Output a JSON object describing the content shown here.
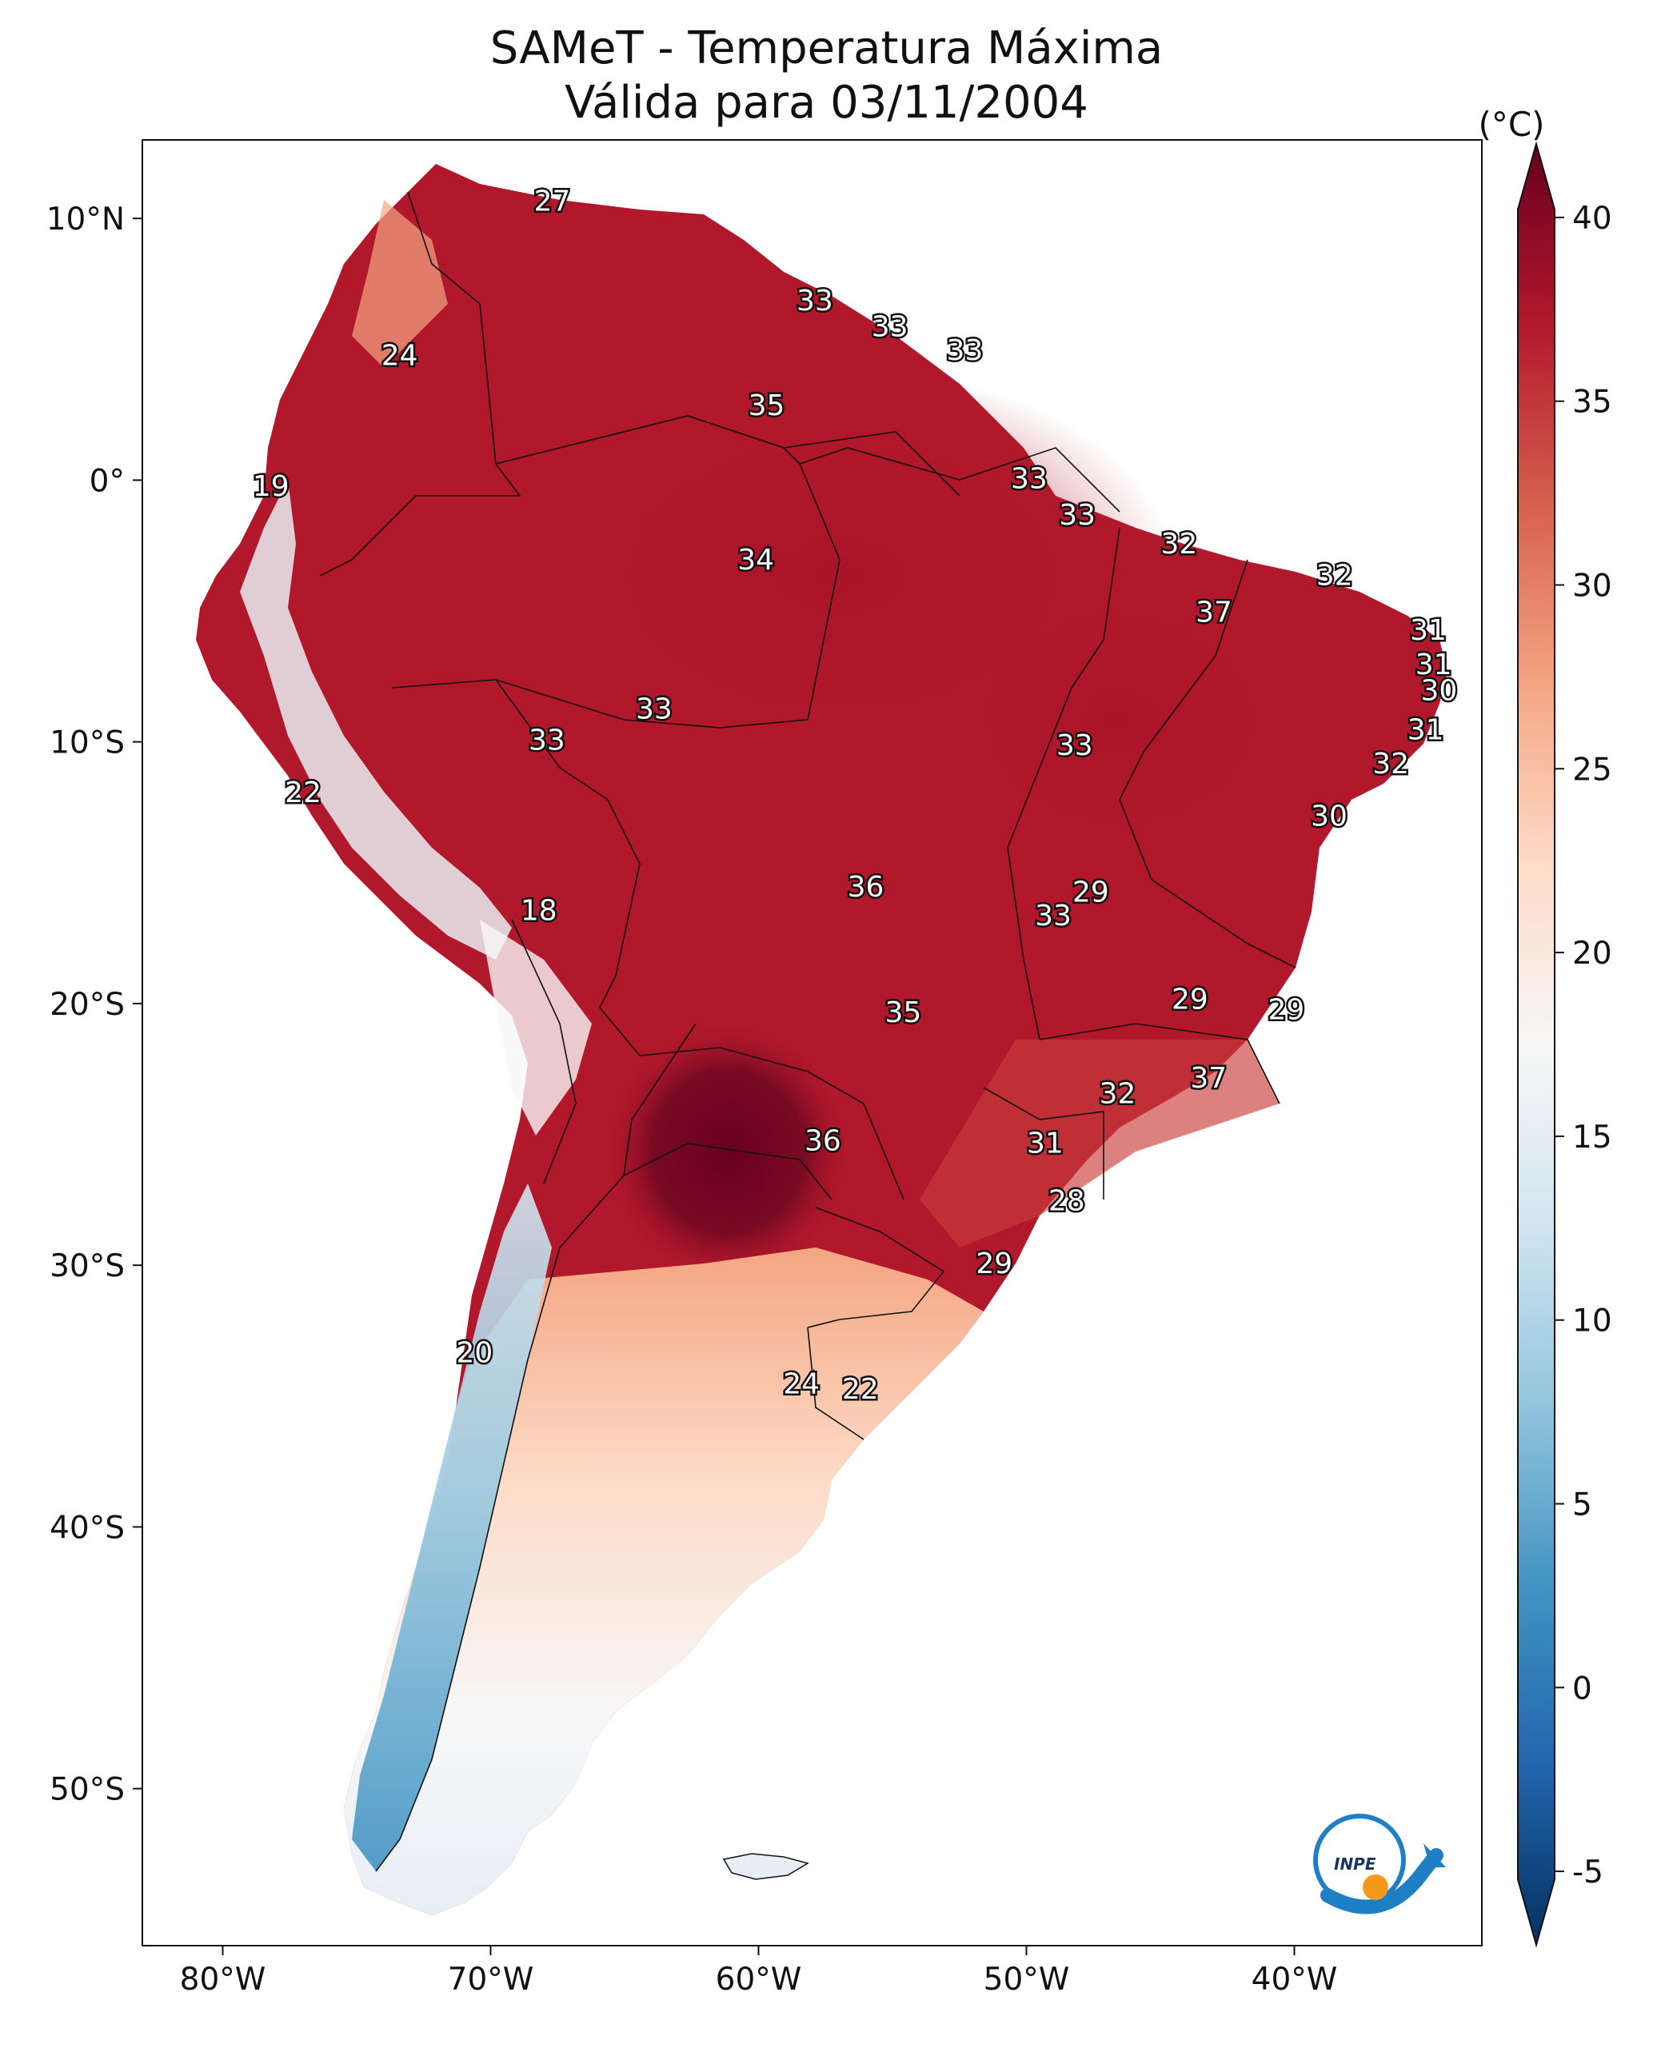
{
  "title": {
    "line1": "SAMeT - Temperatura Máxima",
    "line2": "Válida para 03/11/2004"
  },
  "colorbar": {
    "unit": "(°C)",
    "min": -7,
    "max": 42,
    "ticks": [
      {
        "value": 40,
        "label": "40"
      },
      {
        "value": 35,
        "label": "35"
      },
      {
        "value": 30,
        "label": "30"
      },
      {
        "value": 25,
        "label": "25"
      },
      {
        "value": 20,
        "label": "20"
      },
      {
        "value": 15,
        "label": "15"
      },
      {
        "value": 10,
        "label": "10"
      },
      {
        "value": 5,
        "label": "5"
      },
      {
        "value": 0,
        "label": "0"
      },
      {
        "value": -5,
        "label": "-5"
      }
    ],
    "colors": [
      "#053061",
      "#2166ac",
      "#4393c3",
      "#92c5de",
      "#d1e5f0",
      "#f7f7f7",
      "#fddbc7",
      "#f4a582",
      "#d6604d",
      "#b2182b",
      "#67001f"
    ]
  },
  "axes": {
    "lon_range": [
      -83,
      -33
    ],
    "lat_range": [
      -56,
      13
    ],
    "lon_ticks": [
      {
        "value": -80,
        "label": "80°W"
      },
      {
        "value": -70,
        "label": "70°W"
      },
      {
        "value": -60,
        "label": "60°W"
      },
      {
        "value": -50,
        "label": "50°W"
      },
      {
        "value": -40,
        "label": "40°W"
      }
    ],
    "lat_ticks": [
      {
        "value": 10,
        "label": "10°N"
      },
      {
        "value": 0,
        "label": "0°"
      },
      {
        "value": -10,
        "label": "10°S"
      },
      {
        "value": -20,
        "label": "20°S"
      },
      {
        "value": -30,
        "label": "30°S"
      },
      {
        "value": -40,
        "label": "40°S"
      },
      {
        "value": -50,
        "label": "50°S"
      }
    ]
  },
  "station_values": [
    {
      "lon": -67.7,
      "lat": 10.6,
      "label": "27"
    },
    {
      "lon": -73.4,
      "lat": 4.7,
      "label": "24"
    },
    {
      "lon": -78.2,
      "lat": -0.3,
      "label": "19"
    },
    {
      "lon": -57.9,
      "lat": 6.8,
      "label": "33"
    },
    {
      "lon": -55.1,
      "lat": 5.8,
      "label": "33"
    },
    {
      "lon": -52.3,
      "lat": 4.9,
      "label": "33"
    },
    {
      "lon": -59.7,
      "lat": 2.8,
      "label": "35"
    },
    {
      "lon": -49.9,
      "lat": 0.0,
      "label": "33"
    },
    {
      "lon": -48.1,
      "lat": -1.4,
      "label": "33"
    },
    {
      "lon": -44.3,
      "lat": -2.5,
      "label": "32"
    },
    {
      "lon": -38.5,
      "lat": -3.7,
      "label": "32"
    },
    {
      "lon": -43.0,
      "lat": -5.1,
      "label": "37"
    },
    {
      "lon": -35.0,
      "lat": -5.8,
      "label": "31"
    },
    {
      "lon": -34.8,
      "lat": -7.1,
      "label": "31"
    },
    {
      "lon": -34.6,
      "lat": -8.1,
      "label": "30"
    },
    {
      "lon": -35.1,
      "lat": -9.6,
      "label": "31"
    },
    {
      "lon": -36.4,
      "lat": -10.9,
      "label": "32"
    },
    {
      "lon": -38.7,
      "lat": -12.9,
      "label": "30"
    },
    {
      "lon": -60.1,
      "lat": -3.1,
      "label": "34"
    },
    {
      "lon": -63.9,
      "lat": -8.8,
      "label": "33"
    },
    {
      "lon": -67.9,
      "lat": -10.0,
      "label": "33"
    },
    {
      "lon": -48.2,
      "lat": -10.2,
      "label": "33"
    },
    {
      "lon": -77.0,
      "lat": -12.0,
      "label": "22"
    },
    {
      "lon": -56.0,
      "lat": -15.6,
      "label": "36"
    },
    {
      "lon": -47.6,
      "lat": -15.8,
      "label": "29"
    },
    {
      "lon": -49.0,
      "lat": -16.7,
      "label": "33"
    },
    {
      "lon": -68.2,
      "lat": -16.5,
      "label": "18"
    },
    {
      "lon": -43.9,
      "lat": -19.9,
      "label": "29"
    },
    {
      "lon": -40.3,
      "lat": -20.3,
      "label": "29"
    },
    {
      "lon": -54.6,
      "lat": -20.4,
      "label": "35"
    },
    {
      "lon": -43.2,
      "lat": -22.9,
      "label": "37"
    },
    {
      "lon": -46.6,
      "lat": -23.5,
      "label": "32"
    },
    {
      "lon": -57.6,
      "lat": -25.3,
      "label": "36"
    },
    {
      "lon": -49.3,
      "lat": -25.4,
      "label": "31"
    },
    {
      "lon": -48.5,
      "lat": -27.6,
      "label": "28"
    },
    {
      "lon": -51.2,
      "lat": -30.0,
      "label": "29"
    },
    {
      "lon": -70.6,
      "lat": -33.4,
      "label": "20"
    },
    {
      "lon": -58.4,
      "lat": -34.6,
      "label": "24"
    },
    {
      "lon": -56.2,
      "lat": -34.8,
      "label": "22"
    }
  ],
  "logo": {
    "text": "INPE"
  }
}
